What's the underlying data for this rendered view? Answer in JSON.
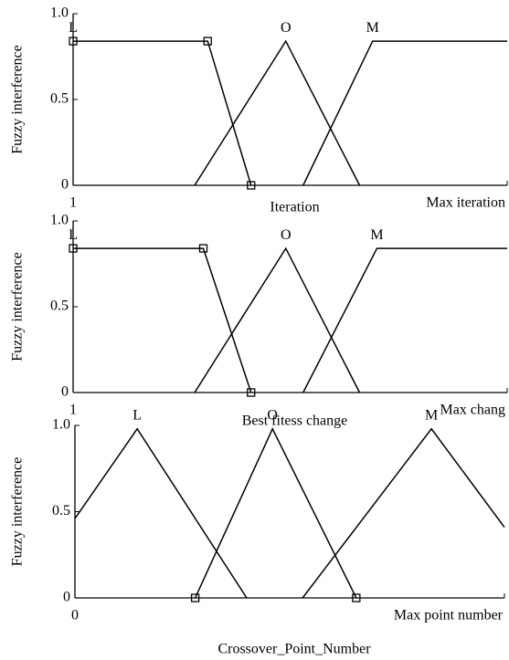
{
  "chart_data": [
    {
      "type": "line",
      "ylabel": "Fuzzy interference",
      "xlabel": "Iteration",
      "xlim": [
        0,
        1
      ],
      "xticks": [
        {
          "value": 0,
          "label": "1"
        },
        {
          "value": 1,
          "label": "Max iteration"
        }
      ],
      "ylim": [
        0,
        1
      ],
      "yticks": [
        0,
        0.5,
        {
          "value": 1,
          "label": "1.0"
        }
      ],
      "series": [
        {
          "name": "L",
          "color": "#000000",
          "x": [
            0,
            0.31,
            0.41
          ],
          "values": [
            0.84,
            0.84,
            0
          ],
          "markers": "all"
        },
        {
          "name": "O",
          "color": "#000000",
          "x": [
            0.28,
            0.49,
            0.66
          ],
          "values": [
            0,
            0.84,
            0
          ]
        },
        {
          "name": "M",
          "color": "#000000",
          "x": [
            0.53,
            0.69,
            1
          ],
          "values": [
            0,
            0.84,
            0.84
          ]
        }
      ]
    },
    {
      "type": "line",
      "ylabel": "Fuzzy interference",
      "xlabel": "Best fitess change",
      "xlim": [
        0,
        1
      ],
      "xticks": [
        {
          "value": 0,
          "label": "1"
        },
        {
          "value": 1,
          "label": "Max chang"
        }
      ],
      "ylim": [
        0,
        1
      ],
      "yticks": [
        0,
        0.5,
        {
          "value": 1,
          "label": "1.0"
        }
      ],
      "series": [
        {
          "name": "L",
          "color": "#000000",
          "x": [
            0,
            0.3,
            0.41
          ],
          "values": [
            0.84,
            0.84,
            0
          ],
          "markers": "all"
        },
        {
          "name": "O",
          "color": "#000000",
          "x": [
            0.28,
            0.49,
            0.66
          ],
          "values": [
            0,
            0.84,
            0
          ]
        },
        {
          "name": "M",
          "color": "#000000",
          "x": [
            0.53,
            0.7,
            1
          ],
          "values": [
            0,
            0.84,
            0.84
          ]
        }
      ]
    },
    {
      "type": "line",
      "ylabel": "Fuzzy interference",
      "xlabel": "Crossover_Point_Number",
      "xlim": [
        0,
        1
      ],
      "xticks": [
        0,
        {
          "value": 1,
          "label": "Max point number"
        }
      ],
      "ylim": [
        0,
        1
      ],
      "yticks": [
        0,
        0.5,
        {
          "value": 1,
          "label": "1.0"
        }
      ],
      "series": [
        {
          "name": "L",
          "color": "#000000",
          "x": [
            0,
            0.145,
            0.4
          ],
          "values": [
            0.46,
            0.98,
            0
          ]
        },
        {
          "name": "O",
          "color": "#000000",
          "x": [
            0.28,
            0.46,
            0.655
          ],
          "values": [
            0,
            0.98,
            0
          ],
          "markers": "ends"
        },
        {
          "name": "M",
          "color": "#000000",
          "x": [
            0.53,
            0.83,
            1
          ],
          "values": [
            0,
            0.98,
            0.41
          ]
        }
      ]
    }
  ]
}
